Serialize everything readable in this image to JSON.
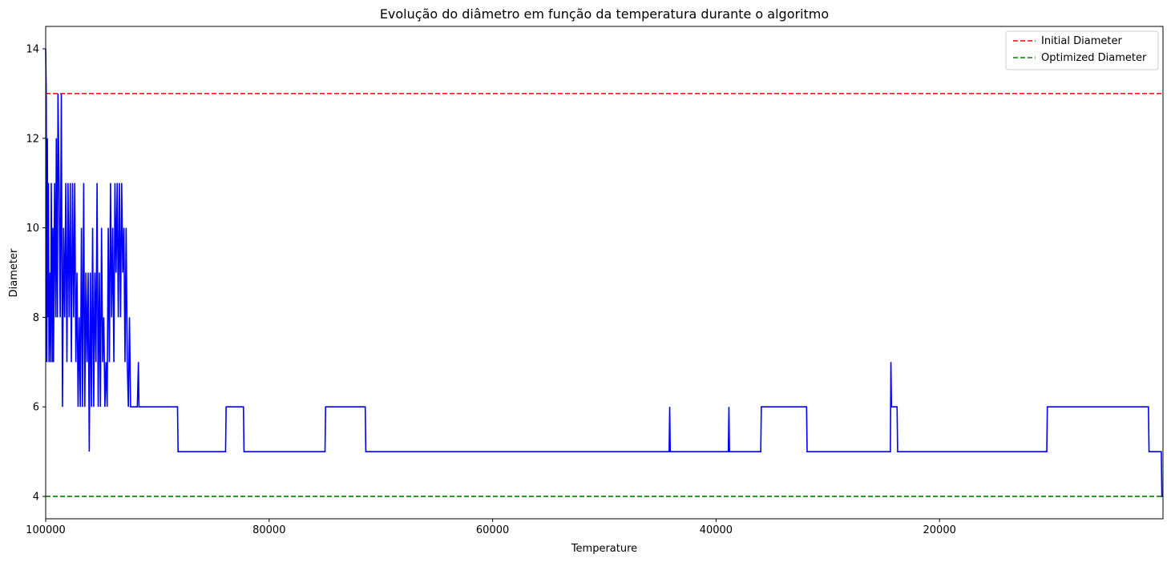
{
  "chart_data": {
    "type": "line",
    "title": "Evolução do diâmetro em função da temperatura durante o algoritmo",
    "xlabel": "Temperature",
    "ylabel": "Diameter",
    "xlim": [
      100000,
      0
    ],
    "ylim": [
      3.5,
      14.5
    ],
    "x_inverted": true,
    "xticks": [
      100000,
      80000,
      60000,
      40000,
      20000
    ],
    "yticks": [
      4,
      6,
      8,
      10,
      12,
      14
    ],
    "grid": false,
    "legend_position": "top-right",
    "series": [
      {
        "color": "#0000ff",
        "style": "solid",
        "points": [
          [
            100000,
            14
          ],
          [
            99950,
            13
          ],
          [
            99900,
            7
          ],
          [
            99850,
            12
          ],
          [
            99800,
            8
          ],
          [
            99750,
            11
          ],
          [
            99700,
            7
          ],
          [
            99600,
            9
          ],
          [
            99550,
            7
          ],
          [
            99500,
            11
          ],
          [
            99400,
            7
          ],
          [
            99350,
            10
          ],
          [
            99300,
            7
          ],
          [
            99200,
            11
          ],
          [
            99100,
            8
          ],
          [
            99050,
            12
          ],
          [
            98950,
            8
          ],
          [
            98900,
            13
          ],
          [
            98800,
            11
          ],
          [
            98700,
            8
          ],
          [
            98600,
            13
          ],
          [
            98500,
            6
          ],
          [
            98400,
            10
          ],
          [
            98300,
            8
          ],
          [
            98200,
            11
          ],
          [
            98100,
            7
          ],
          [
            98000,
            11
          ],
          [
            97900,
            8
          ],
          [
            97800,
            11
          ],
          [
            97700,
            7
          ],
          [
            97600,
            11
          ],
          [
            97500,
            8
          ],
          [
            97400,
            11
          ],
          [
            97300,
            7
          ],
          [
            97200,
            9
          ],
          [
            97100,
            6
          ],
          [
            97000,
            8
          ],
          [
            96900,
            6
          ],
          [
            96800,
            10
          ],
          [
            96700,
            6
          ],
          [
            96600,
            11
          ],
          [
            96500,
            6
          ],
          [
            96400,
            9
          ],
          [
            96300,
            7
          ],
          [
            96200,
            9
          ],
          [
            96100,
            5
          ],
          [
            96000,
            9
          ],
          [
            95900,
            6
          ],
          [
            95800,
            10
          ],
          [
            95700,
            6
          ],
          [
            95600,
            9
          ],
          [
            95500,
            7
          ],
          [
            95400,
            11
          ],
          [
            95300,
            6
          ],
          [
            95200,
            9
          ],
          [
            95100,
            6
          ],
          [
            95000,
            10
          ],
          [
            94900,
            7
          ],
          [
            94800,
            8
          ],
          [
            94700,
            6
          ],
          [
            94600,
            7
          ],
          [
            94500,
            6
          ],
          [
            94400,
            10
          ],
          [
            94300,
            7
          ],
          [
            94200,
            11
          ],
          [
            94100,
            8
          ],
          [
            94000,
            10
          ],
          [
            93900,
            7
          ],
          [
            93800,
            11
          ],
          [
            93700,
            9
          ],
          [
            93600,
            11
          ],
          [
            93500,
            8
          ],
          [
            93400,
            11
          ],
          [
            93300,
            8
          ],
          [
            93200,
            11
          ],
          [
            93100,
            9
          ],
          [
            93000,
            10
          ],
          [
            92900,
            7
          ],
          [
            92800,
            10
          ],
          [
            92700,
            7
          ],
          [
            92600,
            6
          ],
          [
            92500,
            8
          ],
          [
            92400,
            6
          ],
          [
            91800,
            6
          ],
          [
            91700,
            7
          ],
          [
            91650,
            6
          ],
          [
            88200,
            6
          ],
          [
            88150,
            5
          ],
          [
            83900,
            5
          ],
          [
            83850,
            6
          ],
          [
            82300,
            6
          ],
          [
            82250,
            5
          ],
          [
            75000,
            5
          ],
          [
            74950,
            6
          ],
          [
            71400,
            6
          ],
          [
            71350,
            5
          ],
          [
            44200,
            5
          ],
          [
            44150,
            6
          ],
          [
            44100,
            5
          ],
          [
            38900,
            5
          ],
          [
            38850,
            6
          ],
          [
            38800,
            5
          ],
          [
            36000,
            5
          ],
          [
            35950,
            6
          ],
          [
            31900,
            6
          ],
          [
            31850,
            5
          ],
          [
            24400,
            5
          ],
          [
            24350,
            7
          ],
          [
            24300,
            6
          ],
          [
            23800,
            6
          ],
          [
            23750,
            5
          ],
          [
            10400,
            5
          ],
          [
            10350,
            6
          ],
          [
            1300,
            6
          ],
          [
            1250,
            5
          ],
          [
            150,
            5
          ],
          [
            100,
            4
          ],
          [
            0,
            4
          ]
        ]
      },
      {
        "name": "Initial Diameter",
        "color": "#ff0000",
        "style": "dashed",
        "hline": 13
      },
      {
        "name": "Optimized Diameter",
        "color": "#008000",
        "style": "dashed",
        "hline": 4
      }
    ]
  }
}
